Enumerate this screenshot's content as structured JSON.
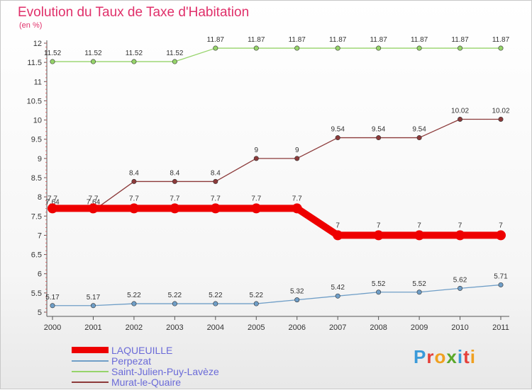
{
  "title": "Evolution du Taux de Taxe d'Habitation",
  "subtitle": "(en %)",
  "logo": {
    "text": "Proxiti",
    "letters": [
      "P",
      "r",
      "o",
      "x",
      "i",
      "t",
      "i"
    ],
    "colors": [
      "#3a9ad9",
      "#e5403a",
      "#f0a020",
      "#5aa82a",
      "#3a9ad9",
      "#e5403a",
      "#f0a020"
    ]
  },
  "chart_data": {
    "type": "line",
    "title": "Evolution du Taux de Taxe d'Habitation",
    "ylabel": "(en %)",
    "xlabel": "",
    "x": [
      "2000",
      "2001",
      "2002",
      "2003",
      "2004",
      "2005",
      "2006",
      "2007",
      "2008",
      "2009",
      "2010",
      "2011"
    ],
    "ylim": [
      5,
      12
    ],
    "yticks": [
      "5",
      "5.5",
      "6",
      "6.5",
      "7",
      "7.5",
      "8",
      "8.5",
      "9",
      "9.5",
      "10",
      "10.5",
      "11",
      "11.5",
      "12"
    ],
    "grid": false,
    "legend_position": "bottom-left",
    "series": [
      {
        "name": "LAQUEUILLE",
        "color": "#ee0000",
        "values": [
          7.7,
          7.7,
          7.7,
          7.7,
          7.7,
          7.7,
          7.7,
          7,
          7,
          7,
          7,
          7
        ],
        "labels": [
          "7.7",
          "7.7",
          "7.7",
          "7.7",
          "7.7",
          "7.7",
          "7.7",
          "7",
          "7",
          "7",
          "7",
          "7"
        ]
      },
      {
        "name": "Perpezat",
        "color": "#6f9ec7",
        "values": [
          5.17,
          5.17,
          5.22,
          5.22,
          5.22,
          5.22,
          5.32,
          5.42,
          5.52,
          5.52,
          5.62,
          5.71
        ],
        "labels": [
          "5.17",
          "5.17",
          "5.22",
          "5.22",
          "5.22",
          "5.22",
          "5.32",
          "5.42",
          "5.52",
          "5.52",
          "5.62",
          "5.71"
        ]
      },
      {
        "name": "Saint-Julien-Puy-Lavèze",
        "color": "#96d46a",
        "values": [
          11.52,
          11.52,
          11.52,
          11.52,
          11.87,
          11.87,
          11.87,
          11.87,
          11.87,
          11.87,
          11.87,
          11.87
        ],
        "labels": [
          "11.52",
          "11.52",
          "11.52",
          "11.52",
          "11.87",
          "11.87",
          "11.87",
          "11.87",
          "11.87",
          "11.87",
          "11.87",
          "11.87"
        ]
      },
      {
        "name": "Murat-le-Quaire",
        "color": "#8c3a3a",
        "values": [
          7.64,
          7.64,
          8.4,
          8.4,
          8.4,
          9,
          9,
          9.54,
          9.54,
          9.54,
          10.02,
          10.02
        ],
        "labels": [
          "7.64",
          "7.64",
          "8.4",
          "8.4",
          "8.4",
          "9",
          "9",
          "9.54",
          "9.54",
          "9.54",
          "10.02",
          "10.02"
        ]
      }
    ]
  }
}
